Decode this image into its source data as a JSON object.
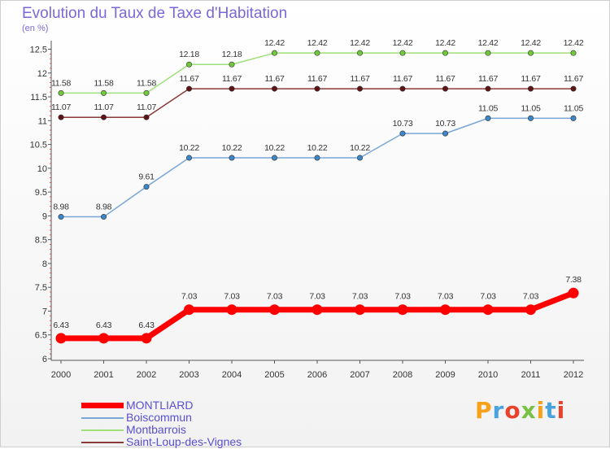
{
  "header": {
    "title": "Evolution du Taux de Taxe d'Habitation",
    "unit": "(en %)"
  },
  "logo": {
    "text": "Proxiti",
    "colors": [
      "#f7a11a",
      "#4aa3df",
      "#e8412c",
      "#7ac143",
      "#f7a11a",
      "#4aa3df",
      "#e8412c"
    ]
  },
  "chart_data": {
    "type": "line",
    "title": "Evolution du Taux de Taxe d'Habitation",
    "subtitle": "(en %)",
    "xlabel": "",
    "ylabel": "",
    "x": [
      "2000",
      "2001",
      "2002",
      "2003",
      "2004",
      "2005",
      "2006",
      "2007",
      "2008",
      "2009",
      "2010",
      "2011",
      "2012"
    ],
    "ylim": [
      6,
      12.5
    ],
    "yticks": [
      "6",
      "6.5",
      "7",
      "7.5",
      "8",
      "8.5",
      "9",
      "9.5",
      "10",
      "10.5",
      "11",
      "11.5",
      "12",
      "12.5"
    ],
    "grid": false,
    "legend": "bottom-left",
    "series": [
      {
        "name": "MONTLIARD",
        "color": "#ff0000",
        "emphasis": true,
        "values": [
          6.43,
          6.43,
          6.43,
          7.03,
          7.03,
          7.03,
          7.03,
          7.03,
          7.03,
          7.03,
          7.03,
          7.03,
          7.38
        ],
        "labels": [
          "6.43",
          "6.43",
          "6.43",
          "7.03",
          "7.03",
          "7.03",
          "7.03",
          "7.03",
          "7.03",
          "7.03",
          "7.03",
          "7.03",
          "7.38"
        ]
      },
      {
        "name": "Boiscommun",
        "color": "#7aa6d6",
        "point_color": "#3b87c8",
        "values": [
          8.98,
          8.98,
          9.61,
          10.22,
          10.22,
          10.22,
          10.22,
          10.22,
          10.73,
          10.73,
          11.05,
          11.05,
          11.05
        ],
        "labels": [
          "8.98",
          "8.98",
          "9.61",
          "10.22",
          "10.22",
          "10.22",
          "10.22",
          "10.22",
          "10.73",
          "10.73",
          "11.05",
          "11.05",
          "11.05"
        ]
      },
      {
        "name": "Montbarrois",
        "color": "#9fe07a",
        "point_color": "#6fc93a",
        "values": [
          11.58,
          11.58,
          11.58,
          12.18,
          12.18,
          12.42,
          12.42,
          12.42,
          12.42,
          12.42,
          12.42,
          12.42,
          12.42
        ],
        "labels": [
          "11.58",
          "11.58",
          "11.58",
          "12.18",
          "12.18",
          "12.42",
          "12.42",
          "12.42",
          "12.42",
          "12.42",
          "12.42",
          "12.42",
          "12.42"
        ]
      },
      {
        "name": "Saint-Loup-des-Vignes",
        "color": "#8b3a3a",
        "point_color": "#5e1414",
        "values": [
          11.07,
          11.07,
          11.07,
          11.67,
          11.67,
          11.67,
          11.67,
          11.67,
          11.67,
          11.67,
          11.67,
          11.67,
          11.67
        ],
        "labels": [
          "11.07",
          "11.07",
          "11.07",
          "11.67",
          "11.67",
          "11.67",
          "11.67",
          "11.67",
          "11.67",
          "11.67",
          "11.67",
          "11.67",
          "11.67"
        ]
      }
    ]
  }
}
